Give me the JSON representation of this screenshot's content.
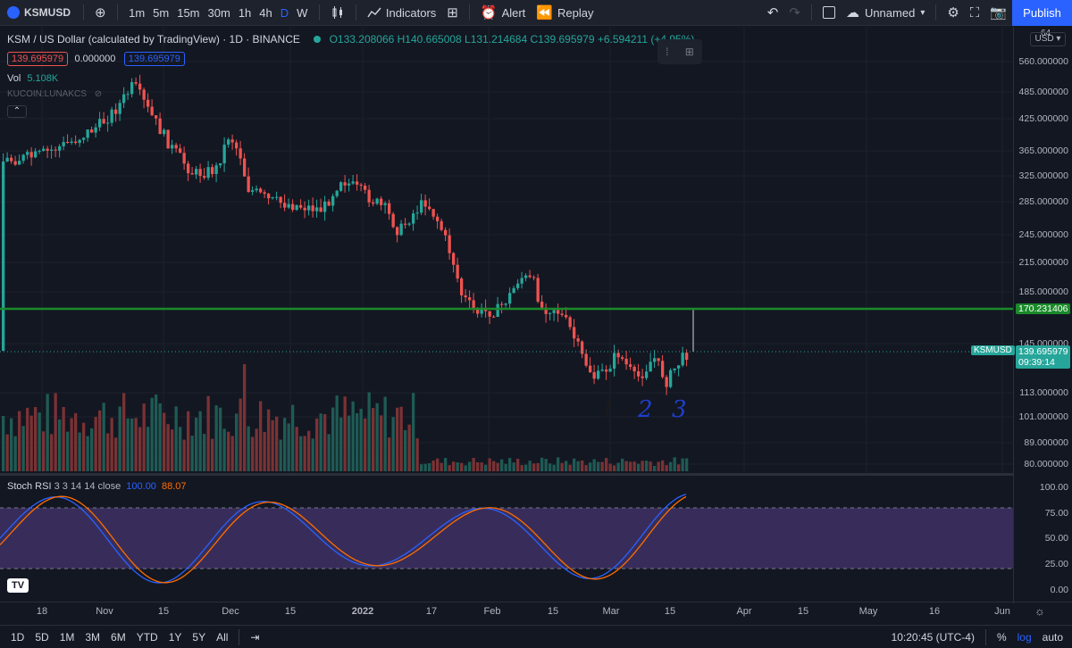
{
  "toolbar": {
    "symbol": "KSMUSD",
    "timeframes": [
      "1m",
      "5m",
      "15m",
      "30m",
      "1h",
      "4h",
      "D",
      "W"
    ],
    "active_timeframe": "D",
    "indicators": "Indicators",
    "alert": "Alert",
    "replay": "Replay",
    "layout_name": "Unnamed",
    "publish": "Publish"
  },
  "legend": {
    "title": "KSM / US Dollar (calculated by TradingView) · 1D · BINANCE",
    "ohlc": "O133.208066 H140.665008 L131.214684 C139.695979 +6.594211 (+4.95%)",
    "bid": "139.695979",
    "spread": "0.000000",
    "ask": "139.695979",
    "vol_label": "Vol",
    "vol_value": "5.108K",
    "compare": "KUCOIN:LUNAKCS"
  },
  "rsi": {
    "label": "Stoch RSI",
    "params": "3 3 14 14 close",
    "k": "100.00",
    "d": "88.07"
  },
  "price_scale": {
    "currency": "USD",
    "labels": [
      "560.000000",
      "485.000000",
      "425.000000",
      "365.000000",
      "325.000000",
      "285.000000",
      "245.000000",
      "215.000000",
      "185.000000",
      "145.000000",
      "113.000000",
      "101.000000",
      "89.000000",
      "80.000000"
    ],
    "line_tag": "170.231406",
    "symbol_tag": "KSMUSD",
    "last_price": "139.695979",
    "countdown": "09:39:14",
    "top_partial": "64"
  },
  "rsi_scale": [
    "100.00",
    "75.00",
    "50.00",
    "25.00",
    "0.00"
  ],
  "time_axis": [
    "18",
    "Nov",
    "15",
    "Dec",
    "15",
    "2022",
    "17",
    "Feb",
    "15",
    "Mar",
    "15",
    "Apr",
    "15",
    "May",
    "16",
    "Jun"
  ],
  "annotations": [
    "1",
    "2",
    "3"
  ],
  "bottom": {
    "ranges": [
      "1D",
      "5D",
      "1M",
      "3M",
      "6M",
      "YTD",
      "1Y",
      "5Y",
      "All"
    ],
    "clock": "10:20:45 (UTC-4)",
    "pct": "%",
    "log": "log",
    "auto": "auto"
  },
  "colors": {
    "up": "#26a69a",
    "down": "#ef5350",
    "hline": "#1b8a2a",
    "accent": "#2962ff",
    "rsi_k": "#2962ff",
    "rsi_d": "#ff6d00",
    "rsi_band": "#7e57c2"
  }
}
